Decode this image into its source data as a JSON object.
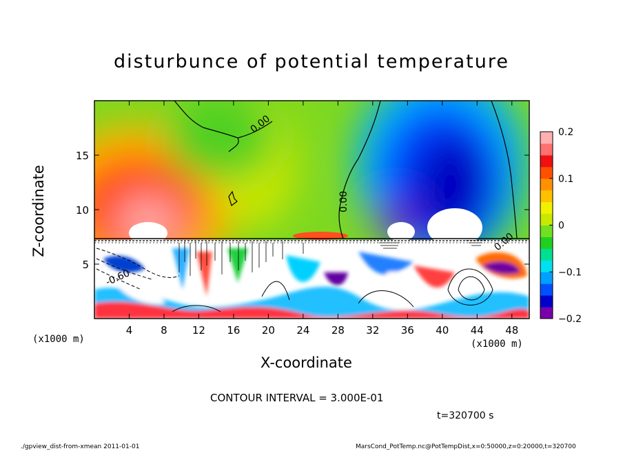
{
  "chart_data": {
    "type": "heatmap",
    "title": "disturbunce of potential temperature",
    "xlabel": "X-coordinate",
    "ylabel": "Z-coordinate",
    "x_unit_label": "(x1000 m)",
    "xlim": [
      0,
      50
    ],
    "ylim": [
      0,
      20
    ],
    "x_ticks": [
      4,
      8,
      12,
      16,
      20,
      24,
      28,
      32,
      36,
      40,
      44,
      48
    ],
    "y_ticks": [
      5,
      10,
      15
    ],
    "colorbar": {
      "range": [
        -0.2,
        0.2
      ],
      "tick_values": [
        0.2,
        0.1,
        0,
        -0.1,
        -0.2
      ],
      "tick_labels": [
        "0.2",
        "0.1",
        "0",
        "−0.1",
        "−0.2"
      ],
      "colors": [
        "#7a00aa",
        "#0000cc",
        "#0050ff",
        "#00a0ff",
        "#00e0f0",
        "#00e090",
        "#20d020",
        "#70e020",
        "#c8e800",
        "#f0f000",
        "#ffc000",
        "#ff9000",
        "#ff5000",
        "#f01010",
        "#ff7070",
        "#ffb0b0"
      ]
    },
    "contour_labels": [
      "0.00",
      "0.00",
      "-0.60",
      "0.00"
    ],
    "contour_interval": "CONTOUR INTERVAL = 3.000E-01",
    "time": "t=320700 s",
    "fields": [
      {
        "region": "upper",
        "center_x": 6,
        "center_z": 11,
        "value": 0.2
      },
      {
        "region": "upper",
        "center_x": 18,
        "center_z": 16,
        "value": 0.02
      },
      {
        "region": "upper",
        "center_x": 43,
        "center_z": 13,
        "value": -0.2
      },
      {
        "region": "upper",
        "center_x": 36,
        "center_z": 10,
        "value": -0.18
      }
    ]
  },
  "footer": {
    "left": "./gpview_dist-from-xmean   2011-01-01",
    "right": "MarsCond_PotTemp.nc@PotTempDist,x=0:50000,z=0:20000,t=320700"
  }
}
